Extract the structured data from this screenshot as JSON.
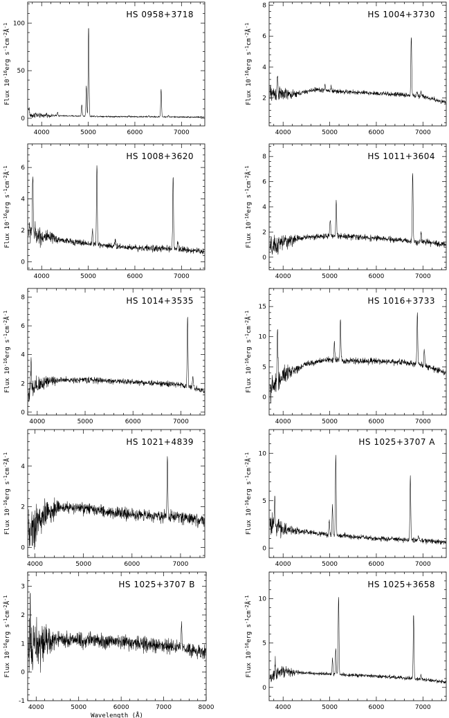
{
  "chart_data": [
    {
      "type": "line",
      "title": "HS  0958+3718",
      "ylabel": "Flux  10^-16erg  s^-1cm^-2Å^-1",
      "xlabel": "",
      "xlim": [
        3700,
        7500
      ],
      "ylim": [
        -8,
        122
      ],
      "xticks": [
        4000,
        5000,
        6000,
        7000
      ],
      "yticks": [
        0,
        50,
        100
      ],
      "continuum": [
        [
          3700,
          3.0
        ],
        [
          4500,
          2.5
        ],
        [
          5500,
          1.8
        ],
        [
          6500,
          1.5
        ],
        [
          7500,
          1.2
        ]
      ],
      "noise": 0.6,
      "lines": [
        [
          3727,
          8
        ],
        [
          3869,
          2
        ],
        [
          4101,
          2
        ],
        [
          4340,
          4
        ],
        [
          4861,
          12
        ],
        [
          4959,
          32
        ],
        [
          5007,
          95
        ],
        [
          5876,
          1
        ],
        [
          6300,
          1
        ],
        [
          6563,
          29
        ],
        [
          6717,
          1.5
        ]
      ]
    },
    {
      "type": "line",
      "title": "HS  1004+3730",
      "ylabel": "Flux  10^-16erg  s^-1cm^-2Å^-1",
      "xlabel": "",
      "xlim": [
        3700,
        7500
      ],
      "ylim": [
        0.2,
        8.2
      ],
      "xticks": [
        4000,
        5000,
        6000,
        7000
      ],
      "yticks": [
        2,
        4,
        6,
        8
      ],
      "continuum": [
        [
          3750,
          2.3
        ],
        [
          4200,
          2.2
        ],
        [
          4700,
          2.55
        ],
        [
          5300,
          2.4
        ],
        [
          6000,
          2.3
        ],
        [
          6600,
          2.2
        ],
        [
          7000,
          2.1
        ],
        [
          7500,
          1.7
        ]
      ],
      "noise": 0.11,
      "lines": [
        [
          3880,
          1.2
        ],
        [
          4900,
          0.3
        ],
        [
          5030,
          0.3
        ],
        [
          6750,
          3.9
        ],
        [
          6870,
          0.3
        ],
        [
          6960,
          0.4
        ]
      ]
    },
    {
      "type": "line",
      "title": "HS  1008+3620",
      "ylabel": "Flux  10^-16erg  s^-1cm^-2Å^-1",
      "xlabel": "",
      "xlim": [
        3700,
        7500
      ],
      "ylim": [
        -0.5,
        7.5
      ],
      "xticks": [
        4000,
        5000,
        6000,
        7000
      ],
      "yticks": [
        0,
        2,
        4,
        6
      ],
      "continuum": [
        [
          3760,
          2.0
        ],
        [
          4000,
          1.6
        ],
        [
          4600,
          1.3
        ],
        [
          5200,
          1.1
        ],
        [
          6000,
          0.9
        ],
        [
          7000,
          0.8
        ],
        [
          7500,
          0.65
        ]
      ],
      "noise": 0.15,
      "lines": [
        [
          3810,
          3.2
        ],
        [
          5090,
          0.9
        ],
        [
          5185,
          5.1
        ],
        [
          5580,
          0.3
        ],
        [
          6820,
          4.6
        ],
        [
          6920,
          0.5
        ]
      ]
    },
    {
      "type": "line",
      "title": "HS  1011+3604",
      "ylabel": "Flux  10^-16erg  s^-1cm^-2Å^-1",
      "xlabel": "",
      "xlim": [
        3700,
        7500
      ],
      "ylim": [
        -1,
        9
      ],
      "xticks": [
        4000,
        5000,
        6000,
        7000
      ],
      "yticks": [
        0,
        2,
        4,
        6,
        8
      ],
      "continuum": [
        [
          3760,
          0.7
        ],
        [
          4000,
          1.2
        ],
        [
          4500,
          1.6
        ],
        [
          5200,
          1.7
        ],
        [
          6000,
          1.5
        ],
        [
          7000,
          1.2
        ],
        [
          7500,
          1.0
        ]
      ],
      "noise": 0.17,
      "lines": [
        [
          5010,
          1.4
        ],
        [
          5140,
          2.8
        ],
        [
          6780,
          5.5
        ],
        [
          6960,
          0.7
        ]
      ]
    },
    {
      "type": "line",
      "title": "HS  1014+3535",
      "ylabel": "Flux  10^-16erg  s^-1cm^-2Å^-1",
      "xlabel": "",
      "xlim": [
        3800,
        7500
      ],
      "ylim": [
        -0.2,
        8.6
      ],
      "xticks": [
        4000,
        5000,
        6000,
        7000
      ],
      "yticks": [
        0,
        2,
        4,
        6,
        8
      ],
      "continuum": [
        [
          3800,
          1.3
        ],
        [
          4200,
          2.2
        ],
        [
          5000,
          2.25
        ],
        [
          6000,
          2.1
        ],
        [
          7000,
          1.9
        ],
        [
          7500,
          1.5
        ]
      ],
      "noise": 0.15,
      "lines": [
        [
          3870,
          1.8
        ],
        [
          7140,
          4.9
        ],
        [
          7250,
          0.8
        ]
      ]
    },
    {
      "type": "line",
      "title": "HS  1016+3733",
      "ylabel": "Flux  10^-16erg  s^-1cm^-2Å^-1",
      "xlabel": "",
      "xlim": [
        3700,
        7500
      ],
      "ylim": [
        -3,
        18
      ],
      "xticks": [
        4000,
        5000,
        6000,
        7000
      ],
      "yticks": [
        0,
        5,
        10,
        15
      ],
      "continuum": [
        [
          3760,
          1.5
        ],
        [
          4000,
          3.5
        ],
        [
          4500,
          5.5
        ],
        [
          5000,
          6.2
        ],
        [
          5500,
          6.0
        ],
        [
          6500,
          5.8
        ],
        [
          7000,
          5.3
        ],
        [
          7500,
          4.0
        ]
      ],
      "noise": 0.38,
      "lines": [
        [
          3880,
          9.0
        ],
        [
          5100,
          3.0
        ],
        [
          5230,
          6.8
        ],
        [
          6880,
          8.5
        ],
        [
          7030,
          2.5
        ]
      ]
    },
    {
      "type": "line",
      "title": "HS  1021+4839",
      "ylabel": "Flux  10^-16erg  s^-1cm^-2Å^-1",
      "xlabel": "",
      "xlim": [
        3850,
        7500
      ],
      "ylim": [
        -0.5,
        5.8
      ],
      "xticks": [
        4000,
        5000,
        6000,
        7000
      ],
      "yticks": [
        0,
        2,
        4
      ],
      "continuum": [
        [
          3880,
          0.8
        ],
        [
          4200,
          1.6
        ],
        [
          4500,
          2.0
        ],
        [
          5000,
          1.9
        ],
        [
          6000,
          1.6
        ],
        [
          7000,
          1.5
        ],
        [
          7500,
          1.3
        ]
      ],
      "noise": 0.22,
      "lines": [
        [
          6730,
          3.0
        ]
      ]
    },
    {
      "type": "line",
      "title": "HS  1025+3707  A",
      "ylabel": "Flux  10^-16erg  s^-1cm^-2Å^-1",
      "xlabel": "",
      "xlim": [
        3700,
        7500
      ],
      "ylim": [
        -1,
        12.5
      ],
      "xticks": [
        4000,
        5000,
        6000,
        7000
      ],
      "yticks": [
        0,
        5,
        10
      ],
      "continuum": [
        [
          3760,
          2.5
        ],
        [
          4000,
          2.0
        ],
        [
          5000,
          1.4
        ],
        [
          6000,
          1.0
        ],
        [
          7000,
          0.8
        ],
        [
          7500,
          0.6
        ]
      ],
      "noise": 0.2,
      "lines": [
        [
          3820,
          2.6
        ],
        [
          4990,
          1.5
        ],
        [
          5060,
          3.0
        ],
        [
          5130,
          8.5
        ],
        [
          6730,
          6.7
        ],
        [
          6900,
          0.5
        ]
      ]
    },
    {
      "type": "line",
      "title": "HS  1025+3707  B",
      "ylabel": "Flux  10^-16erg  s^-1cm^-2Å^-1",
      "xlabel": "Wavelength  (Å)",
      "xlim": [
        3800,
        8000
      ],
      "ylim": [
        -1,
        3.5
      ],
      "xticks": [
        4000,
        5000,
        6000,
        7000,
        8000
      ],
      "yticks": [
        -1,
        0,
        1,
        2,
        3
      ],
      "continuum": [
        [
          3820,
          0.7
        ],
        [
          4000,
          0.9
        ],
        [
          4500,
          1.15
        ],
        [
          5500,
          1.1
        ],
        [
          6500,
          1.0
        ],
        [
          7500,
          0.8
        ],
        [
          8000,
          0.65
        ]
      ],
      "noise": 0.2,
      "lines": [
        [
          3860,
          1.5
        ],
        [
          7420,
          0.9
        ]
      ]
    },
    {
      "type": "line",
      "title": "HS  1025+3658",
      "ylabel": "Flux  10^-16erg  s^-1cm^-2Å^-1",
      "xlabel": "",
      "xlim": [
        3700,
        7500
      ],
      "ylim": [
        -1.5,
        13
      ],
      "xticks": [
        4000,
        5000,
        6000,
        7000
      ],
      "yticks": [
        0,
        5,
        10
      ],
      "continuum": [
        [
          3760,
          1.2
        ],
        [
          4000,
          1.8
        ],
        [
          4500,
          1.6
        ],
        [
          5500,
          1.4
        ],
        [
          6500,
          1.1
        ],
        [
          7000,
          0.9
        ],
        [
          7500,
          0.6
        ]
      ],
      "noise": 0.15,
      "lines": [
        [
          3830,
          1.5
        ],
        [
          5060,
          1.8
        ],
        [
          5130,
          3.0
        ],
        [
          5190,
          8.8
        ],
        [
          6800,
          7.2
        ],
        [
          6960,
          0.5
        ]
      ]
    }
  ]
}
